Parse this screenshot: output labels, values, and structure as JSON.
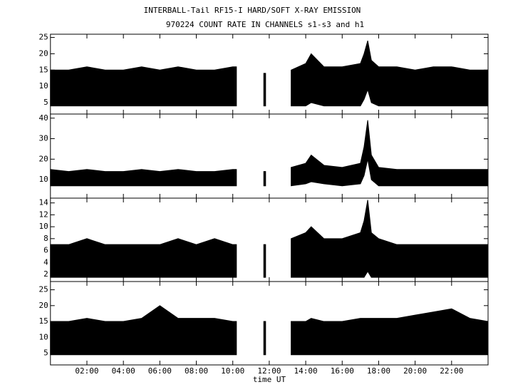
{
  "title": "INTERBALL-Tail RF15-I HARD/SOFT X-RAY EMISSION",
  "subtitle": "970224  COUNT RATE IN CHANNELS s1-s3 and h1",
  "xlabel": "time UT",
  "x": [
    0,
    1,
    2,
    3,
    4,
    5,
    6,
    7,
    8,
    9,
    10,
    10.2,
    11,
    11.7,
    11.8,
    12.5,
    13.2,
    14,
    14.3,
    15,
    16,
    17,
    17.2,
    17.4,
    17.6,
    18,
    19,
    20,
    21,
    22,
    23,
    24
  ],
  "xlim": [
    0,
    24
  ],
  "xticks": [
    {
      "value": 2,
      "label": "02:00"
    },
    {
      "value": 4,
      "label": "04:00"
    },
    {
      "value": 6,
      "label": "06:00"
    },
    {
      "value": 8,
      "label": "08:00"
    },
    {
      "value": 10,
      "label": "10:00"
    },
    {
      "value": 12,
      "label": "12:00"
    },
    {
      "value": 14,
      "label": "14:00"
    },
    {
      "value": 16,
      "label": "16:00"
    },
    {
      "value": 18,
      "label": "18:00"
    },
    {
      "value": 20,
      "label": "20:00"
    },
    {
      "value": 22,
      "label": "22:00"
    }
  ],
  "chart_data": [
    {
      "type": "band",
      "color": "#000000",
      "ylim": [
        1.5,
        26
      ],
      "yticks": [
        5,
        10,
        15,
        20,
        25
      ],
      "upper": [
        15,
        15,
        16,
        15,
        15,
        16,
        15,
        16,
        15,
        15,
        16,
        16,
        null,
        14,
        14,
        null,
        15,
        17,
        20,
        16,
        16,
        17,
        20,
        24,
        18,
        16,
        16,
        15,
        16,
        16,
        15,
        15
      ],
      "lower": [
        4,
        4,
        4,
        4,
        4,
        4,
        4,
        4,
        4,
        4,
        4,
        4,
        null,
        4,
        4,
        null,
        4,
        4,
        5,
        4,
        4,
        4,
        6,
        9,
        5,
        4,
        4,
        4,
        4,
        4,
        4,
        4
      ]
    },
    {
      "type": "band",
      "color": "#000000",
      "ylim": [
        1,
        42
      ],
      "yticks": [
        10,
        20,
        30,
        40
      ],
      "upper": [
        15,
        14,
        15,
        14,
        14,
        15,
        14,
        15,
        14,
        14,
        15,
        15,
        null,
        14,
        14,
        null,
        16,
        18,
        22,
        17,
        16,
        18,
        26,
        39,
        22,
        16,
        15,
        15,
        15,
        15,
        15,
        15
      ],
      "lower": [
        7,
        7,
        7,
        7,
        7,
        7,
        7,
        7,
        7,
        7,
        7,
        7,
        null,
        7,
        7,
        null,
        7,
        8,
        9,
        8,
        7,
        8,
        12,
        20,
        10,
        7,
        7,
        7,
        7,
        7,
        7,
        7
      ]
    },
    {
      "type": "band",
      "color": "#000000",
      "ylim": [
        0.8,
        14.8
      ],
      "yticks": [
        2,
        4,
        6,
        8,
        10,
        12,
        14
      ],
      "upper": [
        7,
        7,
        8,
        7,
        7,
        7,
        7,
        8,
        7,
        8,
        7,
        7,
        null,
        7,
        7,
        null,
        8,
        9,
        10,
        8,
        8,
        9,
        11,
        14.5,
        9,
        8,
        7,
        7,
        7,
        7,
        7,
        7
      ],
      "lower": [
        1.5,
        1.5,
        1.5,
        1.5,
        1.5,
        1.5,
        1.5,
        1.5,
        1.5,
        1.5,
        1.5,
        1.5,
        null,
        1.5,
        1.5,
        null,
        1.5,
        1.5,
        1.5,
        1.5,
        1.5,
        1.5,
        1.5,
        2.5,
        1.5,
        1.5,
        1.5,
        1.5,
        1.5,
        1.5,
        1.5,
        1.5
      ]
    },
    {
      "type": "band",
      "color": "#000000",
      "ylim": [
        1.3,
        27.6
      ],
      "yticks": [
        5,
        10,
        15,
        20,
        25
      ],
      "upper": [
        15,
        15,
        16,
        15,
        15,
        16,
        20,
        16,
        16,
        16,
        15,
        15,
        null,
        15,
        15,
        null,
        15,
        15,
        16,
        15,
        15,
        16,
        16,
        16,
        16,
        16,
        16,
        17,
        18,
        19,
        16,
        15
      ],
      "lower": [
        4.5,
        4.5,
        4.5,
        4.5,
        4.5,
        4.5,
        4.5,
        4.5,
        4.5,
        4.5,
        4.5,
        4.5,
        null,
        4.5,
        4.5,
        null,
        4.5,
        4.5,
        4.5,
        4.5,
        4.5,
        4.5,
        4.5,
        4.5,
        4.5,
        4.5,
        4.5,
        4.5,
        4.5,
        4.5,
        4.5,
        4.5
      ]
    }
  ]
}
